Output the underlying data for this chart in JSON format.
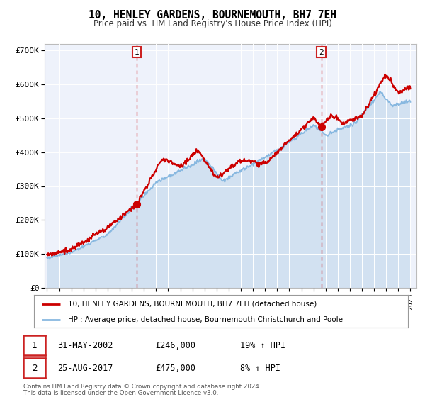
{
  "title": "10, HENLEY GARDENS, BOURNEMOUTH, BH7 7EH",
  "subtitle": "Price paid vs. HM Land Registry's House Price Index (HPI)",
  "legend_line1": "10, HENLEY GARDENS, BOURNEMOUTH, BH7 7EH (detached house)",
  "legend_line2": "HPI: Average price, detached house, Bournemouth Christchurch and Poole",
  "footer1": "Contains HM Land Registry data © Crown copyright and database right 2024.",
  "footer2": "This data is licensed under the Open Government Licence v3.0.",
  "sale1_date": "31-MAY-2002",
  "sale1_price": 246000,
  "sale1_hpi": "19% ↑ HPI",
  "sale1_x": 2002.42,
  "sale2_date": "25-AUG-2017",
  "sale2_price": 475000,
  "sale2_hpi": "8% ↑ HPI",
  "sale2_x": 2017.64,
  "property_color": "#cc0000",
  "hpi_color": "#88b8e0",
  "hpi_fill_color": "#cfe0f0",
  "plot_bg": "#eef2fb",
  "grid_color": "#ffffff",
  "ylim": [
    0,
    720000
  ],
  "xlim": [
    1994.8,
    2025.5
  ],
  "yticks": [
    0,
    100000,
    200000,
    300000,
    400000,
    500000,
    600000,
    700000
  ],
  "ytick_labels": [
    "£0",
    "£100K",
    "£200K",
    "£300K",
    "£400K",
    "£500K",
    "£600K",
    "£700K"
  ],
  "xticks": [
    1995,
    1996,
    1997,
    1998,
    1999,
    2000,
    2001,
    2002,
    2003,
    2004,
    2005,
    2006,
    2007,
    2008,
    2009,
    2010,
    2011,
    2012,
    2013,
    2014,
    2015,
    2016,
    2017,
    2018,
    2019,
    2020,
    2021,
    2022,
    2023,
    2024,
    2025
  ]
}
